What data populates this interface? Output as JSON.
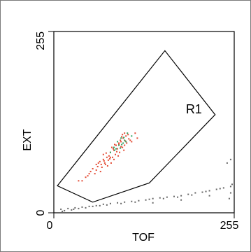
{
  "chart_data": {
    "type": "scatter",
    "xlabel": "TOF",
    "ylabel": "EXT",
    "x_ticks": [
      "0",
      "255"
    ],
    "y_ticks": [
      "0",
      "255"
    ],
    "xlim": [
      0,
      255
    ],
    "ylim": [
      0,
      255
    ],
    "gate": {
      "label": "R1",
      "vertices": [
        [
          5,
          38
        ],
        [
          157,
          228
        ],
        [
          228,
          138
        ],
        [
          135,
          42
        ],
        [
          55,
          15
        ]
      ]
    },
    "series": [
      {
        "color": "#e34a33",
        "points": [
          [
            60,
            60
          ],
          [
            62,
            65
          ],
          [
            55,
            62
          ],
          [
            70,
            75
          ],
          [
            75,
            78
          ],
          [
            72,
            70
          ],
          [
            80,
            85
          ],
          [
            78,
            80
          ],
          [
            85,
            88
          ],
          [
            82,
            92
          ],
          [
            88,
            95
          ],
          [
            90,
            90
          ],
          [
            92,
            98
          ],
          [
            95,
            100
          ],
          [
            98,
            105
          ],
          [
            100,
            95
          ],
          [
            102,
            108
          ],
          [
            97,
            92
          ],
          [
            93,
            85
          ],
          [
            87,
            82
          ],
          [
            83,
            78
          ],
          [
            77,
            74
          ],
          [
            73,
            68
          ],
          [
            68,
            64
          ],
          [
            65,
            72
          ],
          [
            70,
            82
          ],
          [
            86,
            96
          ],
          [
            94,
            102
          ],
          [
            105,
            110
          ],
          [
            108,
            102
          ],
          [
            110,
            100
          ],
          [
            103,
            98
          ],
          [
            99,
            88
          ],
          [
            91,
            80
          ],
          [
            81,
            70
          ],
          [
            76,
            66
          ],
          [
            66,
            58
          ],
          [
            58,
            55
          ],
          [
            63,
            70
          ],
          [
            74,
            84
          ],
          [
            84,
            90
          ],
          [
            96,
            107
          ],
          [
            100,
            112
          ],
          [
            106,
            104
          ],
          [
            89,
            86
          ],
          [
            79,
            76
          ],
          [
            71,
            73
          ],
          [
            67,
            68
          ],
          [
            50,
            55
          ],
          [
            45,
            50
          ],
          [
            40,
            45
          ],
          [
            35,
            45
          ],
          [
            115,
            112
          ],
          [
            118,
            105
          ],
          [
            95,
            93
          ],
          [
            85,
            75
          ],
          [
            92,
            96
          ],
          [
            101,
            101
          ],
          [
            97,
            110
          ],
          [
            80,
            78
          ],
          [
            60,
            68
          ],
          [
            52,
            58
          ],
          [
            48,
            52
          ]
        ]
      },
      {
        "color": "#2ca25f",
        "points": [
          [
            90,
            100
          ],
          [
            95,
            105
          ],
          [
            100,
            102
          ],
          [
            85,
            92
          ],
          [
            92,
            95
          ],
          [
            98,
            98
          ],
          [
            88,
            90
          ],
          [
            102,
            100
          ],
          [
            96,
            96
          ],
          [
            80,
            85
          ],
          [
            110,
            108
          ],
          [
            104,
            112
          ],
          [
            94,
            91
          ],
          [
            86,
            88
          ],
          [
            99,
            106
          ]
        ]
      },
      {
        "color": "#666666",
        "points": [
          [
            10,
            5
          ],
          [
            20,
            6
          ],
          [
            30,
            7
          ],
          [
            40,
            8
          ],
          [
            50,
            9
          ],
          [
            60,
            10
          ],
          [
            70,
            12
          ],
          [
            80,
            13
          ],
          [
            90,
            14
          ],
          [
            100,
            15
          ],
          [
            110,
            16
          ],
          [
            120,
            17
          ],
          [
            130,
            18
          ],
          [
            140,
            20
          ],
          [
            150,
            21
          ],
          [
            160,
            22
          ],
          [
            170,
            23
          ],
          [
            180,
            24
          ],
          [
            190,
            26
          ],
          [
            200,
            28
          ],
          [
            210,
            29
          ],
          [
            220,
            31
          ],
          [
            230,
            33
          ],
          [
            240,
            35
          ],
          [
            250,
            37
          ],
          [
            15,
            3
          ],
          [
            25,
            4
          ],
          [
            35,
            6
          ],
          [
            45,
            7
          ],
          [
            55,
            9
          ],
          [
            65,
            10
          ],
          [
            75,
            11
          ],
          [
            95,
            13
          ],
          [
            115,
            15
          ],
          [
            135,
            19
          ],
          [
            155,
            20
          ],
          [
            175,
            22
          ],
          [
            195,
            25
          ],
          [
            215,
            30
          ],
          [
            235,
            34
          ],
          [
            12,
            2
          ],
          [
            28,
            5
          ],
          [
            140,
            14
          ],
          [
            180,
            18
          ],
          [
            220,
            24
          ],
          [
            250,
            28
          ],
          [
            245,
            70
          ],
          [
            250,
            75
          ],
          [
            248,
            20
          ],
          [
            252,
            40
          ]
        ]
      }
    ]
  }
}
